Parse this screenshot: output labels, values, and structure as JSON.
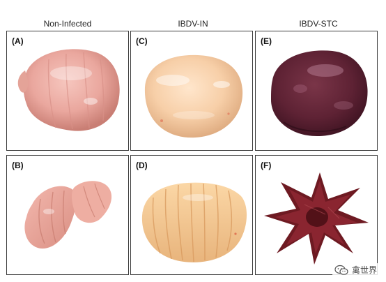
{
  "columns": [
    "Non-Infected",
    "IBDV-IN",
    "IBDV-STC"
  ],
  "panels": [
    {
      "label": "(A)",
      "subject": "normal bursa, pale pink, oval with longitudinal folds"
    },
    {
      "label": "(B)",
      "subject": "normal bursa opened, pink folded mucosa"
    },
    {
      "label": "(C)",
      "subject": "enlarged edematous bursa, yellowish cream"
    },
    {
      "label": "(D)",
      "subject": "opened bursa, yellowish edematous folds"
    },
    {
      "label": "(E)",
      "subject": "hemorrhagic bursa, dark purple-red"
    },
    {
      "label": "(F)",
      "subject": "opened hemorrhagic bursa, dark red star-shaped folds"
    }
  ],
  "watermark": {
    "text": "禽世界",
    "icon": "wechat-icon"
  }
}
